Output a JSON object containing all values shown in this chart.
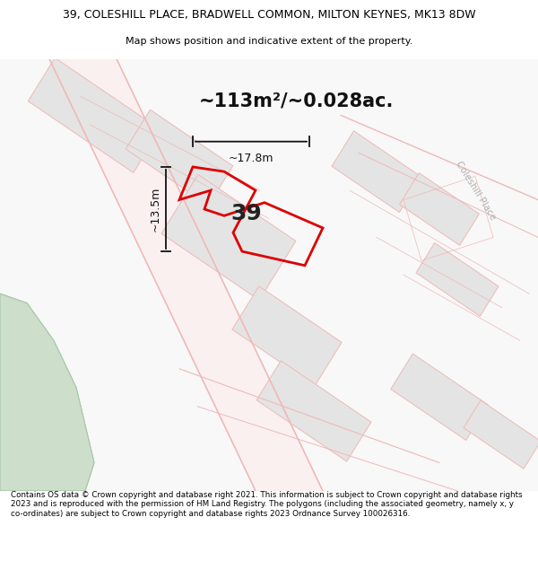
{
  "title": "39, COLESHILL PLACE, BRADWELL COMMON, MILTON KEYNES, MK13 8DW",
  "subtitle": "Map shows position and indicative extent of the property.",
  "area_text": "~113m²/~0.028ac.",
  "width_label": "~17.8m",
  "height_label": "~13.5m",
  "number_label": "39",
  "footer": "Contains OS data © Crown copyright and database right 2021. This information is subject to Crown copyright and database rights 2023 and is reproduced with the permission of HM Land Registry. The polygons (including the associated geometry, namely x, y co-ordinates) are subject to Crown copyright and database rights 2023 Ordnance Survey 100026316.",
  "bg_color": "#ffffff",
  "map_bg": "#ffffff",
  "road_color": "#f0b8b8",
  "building_color": "#e4e4e4",
  "green_color": "#cddecb",
  "highlight_color": "#dd0000",
  "arrow_color": "#111111",
  "coleshill_label_color": "#b0b0b0"
}
